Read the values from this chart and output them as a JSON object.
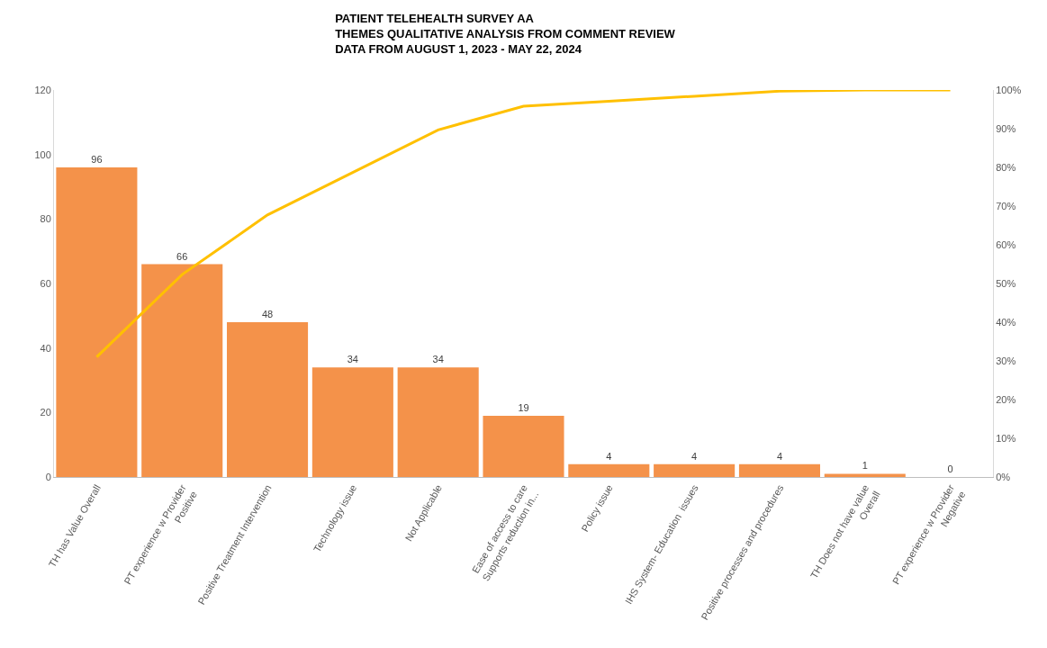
{
  "chart_data": {
    "type": "bar",
    "title": "PATIENT TELEHEALTH SURVEY AA\nTHEMES QUALITATIVE ANALYSIS FROM COMMENT REVIEW\nDATA FROM AUGUST 1, 2023 - MAY 22, 2024",
    "categories": [
      "TH has Value Overall",
      "PT experience w Provider\nPositive",
      "Positive Treatment Intervention",
      "Technology issue",
      "Not Applicable",
      "Ease of access to care\nSupports reduction in...",
      "Policy issue",
      "IHS System- Education  issues",
      "Positive processes and procedures",
      "TH Does not have value\nOverall",
      "PT experience w Provider\nNegative"
    ],
    "series": [
      {
        "color": "#f4924a",
        "values": [
          96,
          66,
          48,
          34,
          34,
          19,
          4,
          4,
          4,
          1,
          0
        ],
        "value_labels": [
          "96",
          "66",
          "48",
          "34",
          "34",
          "19",
          "4",
          "4",
          "4",
          "1",
          "0"
        ]
      },
      {
        "type": "line",
        "axis": "y2",
        "color": "#ffc000",
        "marker": "none",
        "values": [
          31.0,
          52.3,
          67.7,
          78.7,
          89.7,
          95.8,
          97.1,
          98.4,
          99.7,
          100,
          100
        ]
      }
    ],
    "ylim": [
      0,
      120
    ],
    "yticks": [
      0,
      20,
      40,
      60,
      80,
      100,
      120
    ],
    "y2lim": [
      0,
      100
    ],
    "y2ticks": [
      {
        "value": 0,
        "label": "0%"
      },
      {
        "value": 10,
        "label": "10%"
      },
      {
        "value": 20,
        "label": "20%"
      },
      {
        "value": 30,
        "label": "30%"
      },
      {
        "value": 40,
        "label": "40%"
      },
      {
        "value": 50,
        "label": "50%"
      },
      {
        "value": 60,
        "label": "60%"
      },
      {
        "value": 70,
        "label": "70%"
      },
      {
        "value": 80,
        "label": "80%"
      },
      {
        "value": 90,
        "label": "90%"
      },
      {
        "value": 100,
        "label": "100%"
      }
    ],
    "legend": false
  }
}
